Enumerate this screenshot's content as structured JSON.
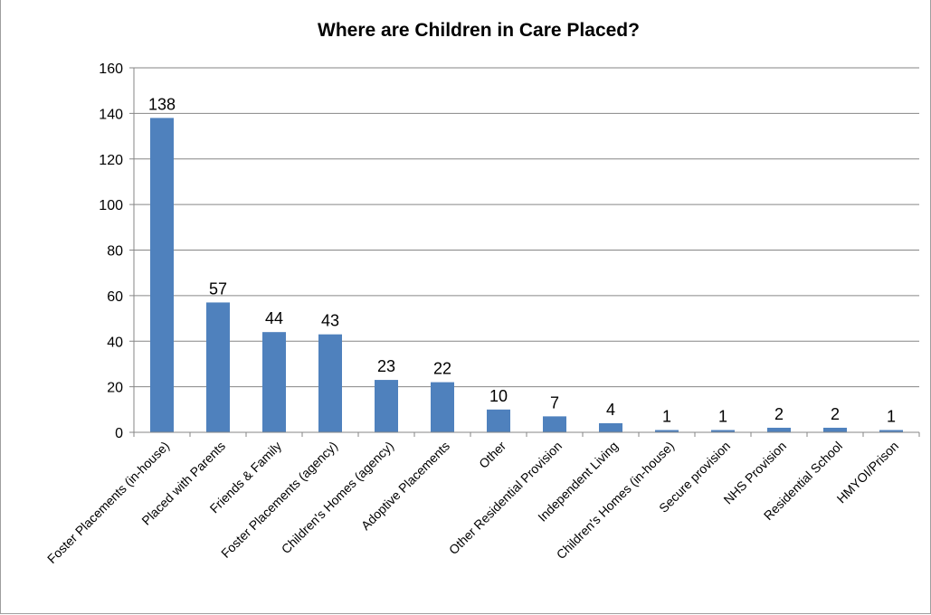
{
  "chart_data": {
    "type": "bar",
    "title": "Where are Children in Care Placed?",
    "xlabel": "",
    "ylabel": "",
    "ylim": [
      0,
      160
    ],
    "yticks": [
      "0",
      "20",
      "40",
      "60",
      "80",
      "100",
      "120",
      "140",
      "160"
    ],
    "grid": true,
    "legend": "none",
    "bar_color": "#4F81BD",
    "categories": [
      "Foster Placements (in-house)",
      "Placed with Parents",
      "Friends & Family",
      "Foster Placements (agency)",
      "Children's Homes (agency)",
      "Adoptive Placements",
      "Other",
      "Other Residential Provision",
      "Independent Living",
      "Children's Homes (in-house)",
      "Secure provision",
      "NHS Provision",
      "Residential School",
      "HMYOI/Prison"
    ],
    "values": [
      138,
      57,
      44,
      43,
      23,
      22,
      10,
      7,
      4,
      1,
      1,
      2,
      2,
      1
    ],
    "data_labels": [
      "138",
      "57",
      "44",
      "43",
      "23",
      "22",
      "10",
      "7",
      "4",
      "1",
      "1",
      "2",
      "2",
      "1"
    ]
  }
}
